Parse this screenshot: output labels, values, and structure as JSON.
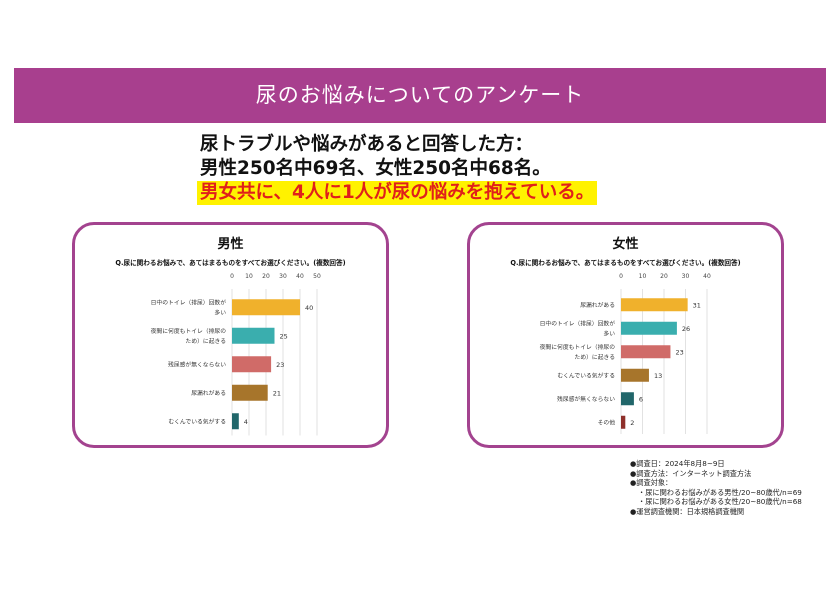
{
  "banner": {
    "title": "尿のお悩みについてのアンケート"
  },
  "headline": {
    "line1": "尿トラブルや悩みがあると回答した方：",
    "line2": "男性250名中69名、女性250名中68名。",
    "line3": "男女共に、4人に1人が尿の悩みを抱えている。"
  },
  "chart_data": [
    {
      "type": "bar",
      "title": "男性",
      "subtitle": "Q.尿に関わるお悩みで、あてはまるものをすべてお選びください。(複数回答)",
      "categories": [
        [
          "日中のトイレ（排尿）回数が",
          "多い"
        ],
        [
          "夜間に何度もトイレ（排尿の",
          "ため）に起きる"
        ],
        [
          "残尿感が無くならない"
        ],
        [
          "尿漏れがある"
        ],
        [
          "むくんでいる気がする"
        ]
      ],
      "values": [
        40,
        25,
        23,
        21,
        4
      ],
      "colors": [
        "#f0b12c",
        "#3aaeae",
        "#d06b68",
        "#a7752b",
        "#21666a"
      ],
      "xlim": [
        0,
        50
      ],
      "ticks": [
        "0",
        "10",
        "20",
        "30",
        "40",
        "50"
      ]
    },
    {
      "type": "bar",
      "title": "女性",
      "subtitle": "Q.尿に関わるお悩みで、あてはまるものをすべてお選びください。(複数回答)",
      "categories": [
        [
          "尿漏れがある"
        ],
        [
          "日中のトイレ（排尿）回数が",
          "多い"
        ],
        [
          "夜間に何度もトイレ（排尿の",
          "ため）に起きる"
        ],
        [
          "むくんでいる気がする"
        ],
        [
          "残尿感が無くならない"
        ],
        [
          "その他"
        ]
      ],
      "values": [
        31,
        26,
        23,
        13,
        6,
        2
      ],
      "colors": [
        "#f0b12c",
        "#3aaeae",
        "#d06b68",
        "#a7752b",
        "#21666a",
        "#8e2f2a"
      ],
      "xlim": [
        0,
        40
      ],
      "ticks": [
        "0",
        "10",
        "20",
        "30",
        "40"
      ]
    }
  ],
  "notes": [
    "●調査日：2024年8月8~9日",
    "●調査方法：インターネット調査方法",
    "●調査対象：",
    "・尿に関わるお悩みがある男性/20~80歳代/n=69",
    "・尿に関わるお悩みがある女性/20~80歳代/n=68",
    "●運営調査機関：日本規格調査機関"
  ]
}
